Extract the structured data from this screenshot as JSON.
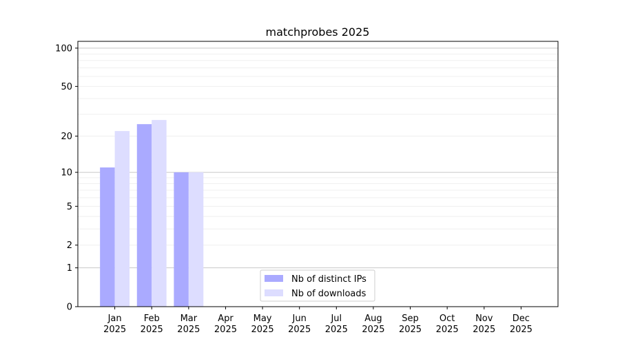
{
  "chart_data": {
    "type": "bar",
    "title": "matchprobes 2025",
    "xlabel": "",
    "ylabel": "",
    "categories": [
      "Jan\n2025",
      "Feb\n2025",
      "Mar\n2025",
      "Apr\n2025",
      "May\n2025",
      "Jun\n2025",
      "Jul\n2025",
      "Aug\n2025",
      "Sep\n2025",
      "Oct\n2025",
      "Nov\n2025",
      "Dec\n2025"
    ],
    "series": [
      {
        "name": "Nb of distinct IPs",
        "color": "#aaaaff",
        "values": [
          11,
          25,
          10,
          0,
          0,
          0,
          0,
          0,
          0,
          0,
          0,
          0
        ]
      },
      {
        "name": "Nb of downloads",
        "color": "#ddddff",
        "values": [
          22,
          27,
          10,
          0,
          0,
          0,
          0,
          0,
          0,
          0,
          0,
          0
        ]
      }
    ],
    "y_scale": "log10(y+1)",
    "ylim": [
      0,
      113
    ],
    "xlim": [
      -1,
      12
    ],
    "yticks": [
      0,
      1,
      2,
      5,
      10,
      20,
      50,
      100
    ],
    "grid": true,
    "legend_position": "lower-center"
  }
}
